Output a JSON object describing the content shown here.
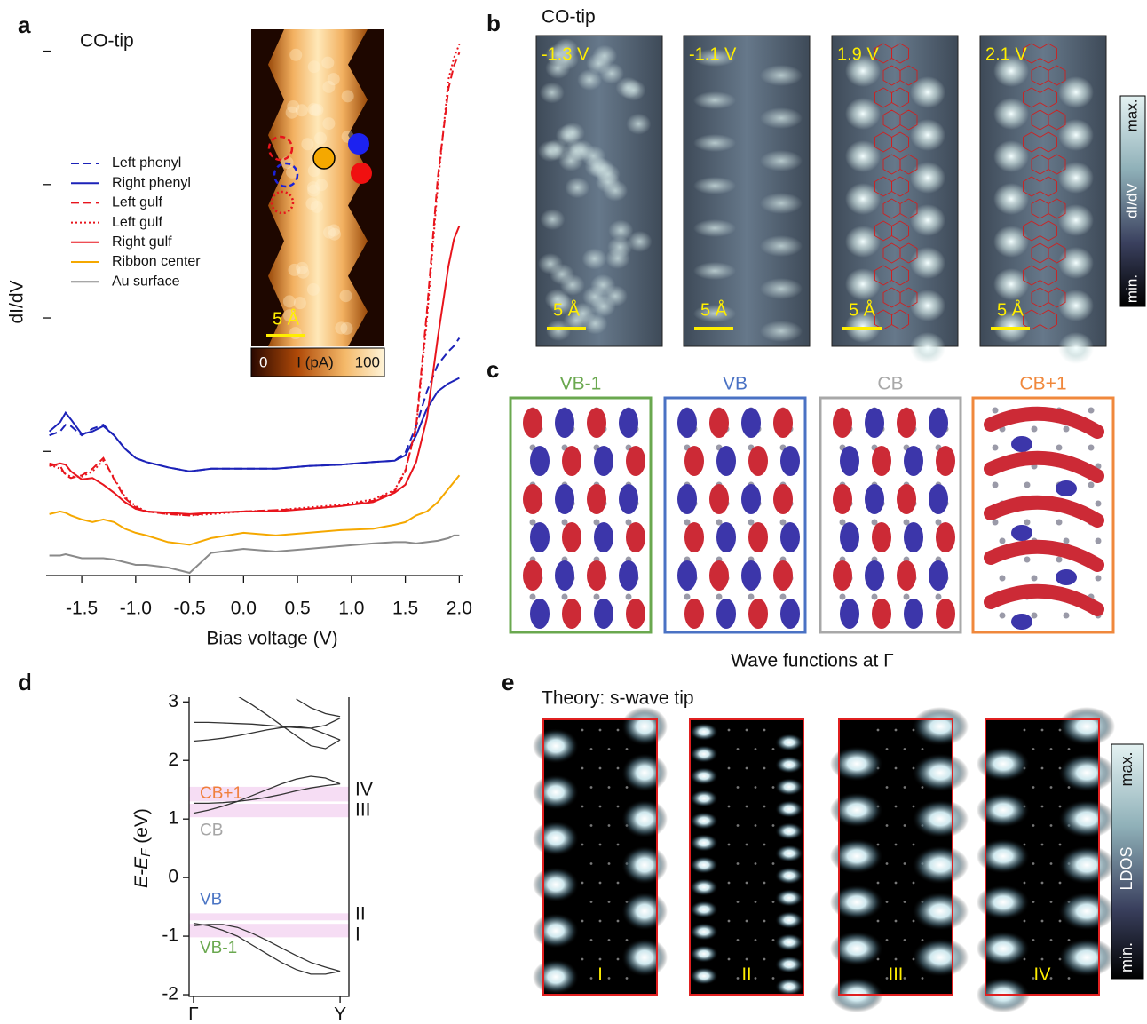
{
  "panels": {
    "a": {
      "label": "a",
      "note": "CO-tip",
      "inset": {
        "scale": "5 Å",
        "colorbar_min": 0,
        "colorbar_title": "I (pA)",
        "colorbar_max": 100
      }
    },
    "b": {
      "label": "b",
      "note": "CO-tip",
      "images": [
        {
          "bias": "-1.3 V",
          "scale": "5 Å"
        },
        {
          "bias": "-1.1 V",
          "scale": "5 Å"
        },
        {
          "bias": "1.9 V",
          "scale": "5 Å"
        },
        {
          "bias": "2.1 V",
          "scale": "5 Å"
        }
      ],
      "colorbar": {
        "max": "max.",
        "quantity": "dI/dV",
        "min": "min."
      }
    },
    "c": {
      "label": "c",
      "images": [
        {
          "state": "VB-1",
          "color": "#6aa84f"
        },
        {
          "state": "VB",
          "color": "#4a72c4"
        },
        {
          "state": "CB",
          "color": "#a8a8a8"
        },
        {
          "state": "CB+1",
          "color": "#f0883c"
        }
      ],
      "caption": "Wave functions at Γ"
    },
    "d": {
      "label": "d"
    },
    "e": {
      "label": "e",
      "note": "Theory: s-wave tip",
      "images": [
        "I",
        "II",
        "III",
        "IV"
      ],
      "colorbar": {
        "max": "max.",
        "quantity": "LDOS",
        "min": "min."
      }
    }
  },
  "chart_data": [
    {
      "type": "line",
      "x_label": "Bias voltage (V)",
      "y_label": "dI/dV",
      "x": [
        -1.8,
        -1.7,
        -1.65,
        -1.6,
        -1.5,
        -1.4,
        -1.3,
        -1.2,
        -1.1,
        -1.0,
        -0.9,
        -0.7,
        -0.5,
        -0.3,
        0,
        0.3,
        0.6,
        0.9,
        1.2,
        1.4,
        1.5,
        1.6,
        1.7,
        1.8,
        1.9,
        1.95,
        2.0
      ],
      "xlim": [
        -1.83,
        2.03
      ],
      "xticks": [
        -1.5,
        {
          "value": -1,
          "label": "-1.0"
        },
        -0.5,
        {
          "value": 0,
          "label": "0.0"
        },
        0.5,
        {
          "value": 1,
          "label": "1.0"
        },
        1.5,
        {
          "value": 2,
          "label": "2.0"
        }
      ],
      "ylim": [
        0.07,
        4.25
      ],
      "yticks": [
        1,
        2,
        3,
        4
      ],
      "legend": "left",
      "series": [
        {
          "name": "Left phenyl",
          "color": "#1c22b8",
          "dash": "dashed",
          "values": [
            1.12,
            1.15,
            1.2,
            1.19,
            1.12,
            1.17,
            1.2,
            1.12,
            1.02,
            0.95,
            0.92,
            0.88,
            0.85,
            0.87,
            0.87,
            0.87,
            0.89,
            0.9,
            0.92,
            0.93,
            0.99,
            1.19,
            1.45,
            1.65,
            1.75,
            1.79,
            1.85
          ]
        },
        {
          "name": "Right phenyl",
          "color": "#1c22b8",
          "dash": "solid",
          "values": [
            1.15,
            1.22,
            1.29,
            1.24,
            1.13,
            1.15,
            1.19,
            1.12,
            1.02,
            0.95,
            0.92,
            0.88,
            0.85,
            0.87,
            0.87,
            0.87,
            0.89,
            0.9,
            0.92,
            0.93,
            0.97,
            1.12,
            1.32,
            1.45,
            1.51,
            1.53,
            1.55
          ]
        },
        {
          "name": "Left gulf",
          "color": "#e8141c",
          "dash": "dashed",
          "values": [
            0.91,
            0.89,
            0.82,
            0.8,
            0.82,
            0.87,
            0.95,
            0.79,
            0.65,
            0.58,
            0.55,
            0.53,
            0.52,
            0.54,
            0.55,
            0.56,
            0.57,
            0.59,
            0.63,
            0.7,
            0.85,
            1.19,
            2.05,
            3.05,
            3.72,
            3.89,
            3.99
          ]
        },
        {
          "name": "Left gulf",
          "color": "#e8141c",
          "dash": "dotted",
          "values": [
            0.9,
            0.87,
            0.83,
            0.81,
            0.81,
            0.85,
            0.93,
            0.8,
            0.66,
            0.59,
            0.55,
            0.53,
            0.52,
            0.53,
            0.55,
            0.56,
            0.58,
            0.6,
            0.64,
            0.71,
            0.86,
            1.17,
            1.99,
            2.99,
            3.79,
            3.95,
            4.05
          ]
        },
        {
          "name": "Right gulf",
          "color": "#e8141c",
          "dash": "solid",
          "values": [
            0.89,
            0.91,
            0.9,
            0.85,
            0.79,
            0.8,
            0.75,
            0.69,
            0.62,
            0.57,
            0.55,
            0.54,
            0.53,
            0.54,
            0.55,
            0.55,
            0.57,
            0.59,
            0.62,
            0.69,
            0.75,
            0.92,
            1.25,
            1.85,
            2.39,
            2.59,
            2.69
          ]
        },
        {
          "name": "Ribbon center",
          "color": "#f5a800",
          "dash": "solid",
          "values": [
            0.53,
            0.55,
            0.54,
            0.52,
            0.49,
            0.47,
            0.49,
            0.47,
            0.42,
            0.39,
            0.37,
            0.32,
            0.3,
            0.35,
            0.39,
            0.37,
            0.39,
            0.41,
            0.42,
            0.45,
            0.47,
            0.52,
            0.55,
            0.62,
            0.72,
            0.77,
            0.82
          ]
        },
        {
          "name": "Au surface",
          "color": "#8a8a8a",
          "dash": "solid",
          "values": [
            0.22,
            0.22,
            0.23,
            0.22,
            0.2,
            0.2,
            0.2,
            0.19,
            0.17,
            0.15,
            0.15,
            0.13,
            0.09,
            0.24,
            0.27,
            0.25,
            0.27,
            0.29,
            0.31,
            0.32,
            0.32,
            0.31,
            0.32,
            0.33,
            0.35,
            0.37,
            0.37
          ]
        }
      ]
    },
    {
      "type": "line",
      "y_label": [
        "E-E",
        "F",
        "(eV)"
      ],
      "color": "#333333",
      "x": [
        0,
        0.1,
        0.2,
        0.3,
        0.4,
        0.5,
        0.6,
        0.7,
        0.8,
        0.9,
        1
      ],
      "xlim": [
        -0.03,
        1.06
      ],
      "xticks": [
        {
          "value": 0,
          "label": "Γ"
        },
        {
          "value": 1,
          "label": "Y"
        }
      ],
      "ylim": [
        -2.03,
        3.08
      ],
      "yticks": [
        -2,
        -1,
        0,
        1,
        2,
        3
      ],
      "series": [
        {
          "values": [
            -0.78,
            -0.82,
            -0.9,
            -1.0,
            -1.15,
            -1.3,
            -1.45,
            -1.57,
            -1.65,
            -1.65,
            -1.6
          ]
        },
        {
          "values": [
            -0.82,
            -0.8,
            -0.8,
            -0.85,
            -0.95,
            -1.07,
            -1.2,
            -1.33,
            -1.45,
            -1.53,
            -1.6
          ]
        },
        {
          "values": [
            1.27,
            1.27,
            1.28,
            1.3,
            1.33,
            1.37,
            1.42,
            1.48,
            1.53,
            1.57,
            1.6
          ]
        },
        {
          "values": [
            1.1,
            1.15,
            1.22,
            1.3,
            1.4,
            1.5,
            1.6,
            1.68,
            1.73,
            1.7,
            1.6
          ]
        },
        {
          "values": [
            2.33,
            2.35,
            2.38,
            2.42,
            2.47,
            2.52,
            2.56,
            2.58,
            2.55,
            2.45,
            2.35
          ]
        },
        {
          "values": [
            2.65,
            2.65,
            2.64,
            2.63,
            2.62,
            2.6,
            2.58,
            2.56,
            2.55,
            2.6,
            2.72
          ]
        },
        {
          "values": [
            null,
            null,
            null,
            3.1,
            2.95,
            2.78,
            2.6,
            2.42,
            2.25,
            2.2,
            2.35
          ]
        },
        {
          "values": [
            null,
            null,
            null,
            null,
            null,
            null,
            null,
            3.05,
            2.9,
            2.8,
            2.75
          ]
        }
      ],
      "annotations": [
        {
          "text": "CB+1",
          "color": "#f07f3c",
          "range": [
            1.3,
            1.55
          ]
        },
        {
          "text": "CB",
          "color": "#a6a6a6",
          "range": [
            1.03,
            1.26
          ]
        },
        {
          "text": "VB",
          "color": "#4a74c4",
          "range": [
            -0.73,
            -0.61
          ]
        },
        {
          "text": "VB-1",
          "color": "#6aa84f",
          "range": [
            -1.02,
            -0.79
          ]
        }
      ],
      "states": [
        "IV",
        "III",
        "II",
        "I"
      ]
    }
  ]
}
